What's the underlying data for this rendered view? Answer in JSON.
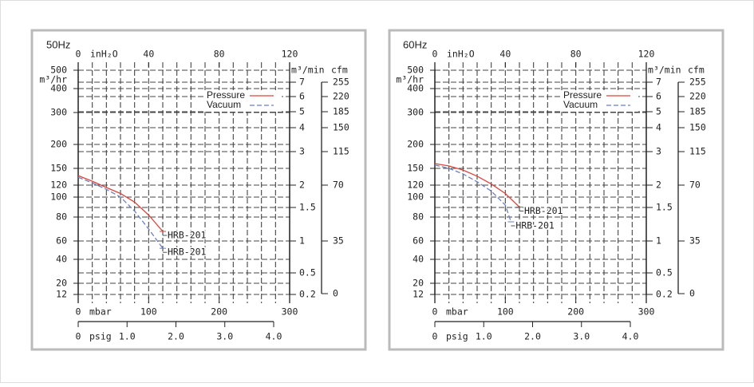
{
  "chart_data": [
    {
      "type": "line",
      "title": "50Hz",
      "x_label": "mbar",
      "xlim": [
        0,
        300
      ],
      "xticks": [
        0,
        100,
        200,
        300
      ],
      "x2_label": "inH₂O",
      "x2lim": [
        0,
        120
      ],
      "x2ticks": [
        0,
        40,
        80,
        120
      ],
      "x3_label": "psig",
      "x3lim": [
        0,
        4
      ],
      "x3ticks": [
        0,
        {
          "value": 1,
          "label": "1.0"
        },
        {
          "value": 2,
          "label": "2.0"
        },
        {
          "value": 3,
          "label": "3.0"
        },
        {
          "value": 4,
          "label": "4.0"
        }
      ],
      "y_label": "m³/hr",
      "ylim": [
        12,
        500
      ],
      "yticks": [
        500,
        400,
        300,
        200,
        150,
        120,
        100,
        80,
        60,
        40,
        20,
        12
      ],
      "y2_label": "m³/min",
      "y2lim": [
        0.2,
        7
      ],
      "y2ticks": [
        7,
        6,
        5,
        4,
        3,
        2,
        1.5,
        1,
        0.5,
        0.2
      ],
      "y3_label": "cfm",
      "y3lim": [
        0,
        255
      ],
      "y3ticks": [
        255,
        220,
        185,
        150,
        115,
        70,
        35,
        0
      ],
      "grid": true,
      "legend": "top-right",
      "series": [
        {
          "name": "Pressure",
          "color": "#d9463e",
          "dashed": false,
          "label": "HRB-201",
          "x": [
            0,
            20,
            40,
            60,
            80,
            100,
            120
          ],
          "values": [
            137,
            127,
            116,
            106,
            95,
            82,
            68
          ]
        },
        {
          "name": "Vacuum",
          "color": "#6b7fc4",
          "dashed": true,
          "label": "HRB-201",
          "x": [
            0,
            20,
            40,
            60,
            80,
            100,
            120
          ],
          "values": [
            134,
            124,
            113,
            100,
            86,
            70,
            52
          ]
        }
      ]
    },
    {
      "type": "line",
      "title": "60Hz",
      "x_label": "mbar",
      "xlim": [
        0,
        300
      ],
      "xticks": [
        0,
        100,
        200,
        300
      ],
      "x2_label": "inH₂O",
      "x2lim": [
        0,
        120
      ],
      "x2ticks": [
        0,
        40,
        80,
        120
      ],
      "x3_label": "psig",
      "x3lim": [
        0,
        4
      ],
      "x3ticks": [
        0,
        {
          "value": 1,
          "label": "1.0"
        },
        {
          "value": 2,
          "label": "2.0"
        },
        {
          "value": 3,
          "label": "3.0"
        },
        {
          "value": 4,
          "label": "4.0"
        }
      ],
      "y_label": "m³/hr",
      "ylim": [
        12,
        500
      ],
      "yticks": [
        500,
        400,
        300,
        200,
        150,
        120,
        100,
        80,
        60,
        40,
        20,
        12
      ],
      "y2_label": "m³/min",
      "y2lim": [
        0.2,
        7
      ],
      "y2ticks": [
        7,
        6,
        5,
        4,
        3,
        2,
        1.5,
        1,
        0.5,
        0.2
      ],
      "y3_label": "cfm",
      "y3lim": [
        0,
        255
      ],
      "y3ticks": [
        255,
        220,
        185,
        150,
        115,
        70,
        35,
        0
      ],
      "grid": true,
      "legend": "top-right",
      "series": [
        {
          "name": "Pressure",
          "color": "#d9463e",
          "dashed": false,
          "label": "HRB-201",
          "x": [
            0,
            20,
            40,
            60,
            80,
            100,
            120
          ],
          "values": [
            160,
            155,
            147,
            136,
            122,
            106,
            90
          ]
        },
        {
          "name": "Vacuum",
          "color": "#6b7fc4",
          "dashed": true,
          "label": "HRB-201",
          "x": [
            0,
            20,
            40,
            60,
            80,
            100,
            108
          ],
          "values": [
            157,
            150,
            140,
            126,
            110,
            92,
            76
          ]
        }
      ]
    }
  ]
}
